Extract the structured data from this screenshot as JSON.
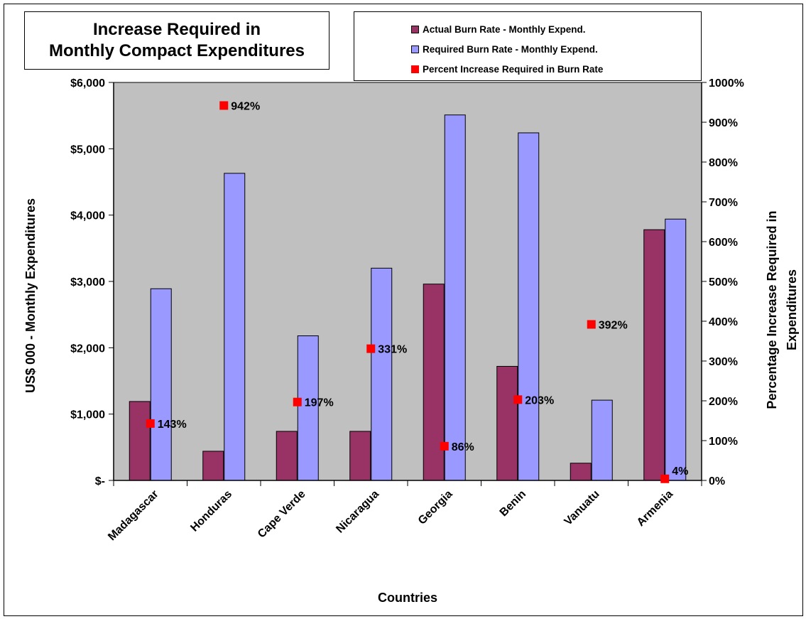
{
  "title_lines": [
    "Increase Required in",
    "Monthly Compact Expenditures"
  ],
  "chart_data": {
    "type": "bar",
    "title": "Increase Required in Monthly Compact Expenditures",
    "xlabel": "Countries",
    "ylabel": "US$ 000 - Monthly Expenditures",
    "y2label_lines": [
      "Percentage Increase Required in",
      "Expenditures"
    ],
    "categories": [
      "Madagascar",
      "Honduras",
      "Cape Verde",
      "Nicaragua",
      "Georgia",
      "Benin",
      "Vanuatu",
      "Armenia"
    ],
    "ylim": [
      0,
      6000
    ],
    "y2lim": [
      0,
      1000
    ],
    "yticks": [
      0,
      1000,
      2000,
      3000,
      4000,
      5000,
      6000
    ],
    "ytick_labels": [
      "$-",
      "$1,000",
      "$2,000",
      "$3,000",
      "$4,000",
      "$5,000",
      "$6,000"
    ],
    "y2ticks": [
      0,
      100,
      200,
      300,
      400,
      500,
      600,
      700,
      800,
      900,
      1000
    ],
    "y2tick_labels": [
      "0%",
      "100%",
      "200%",
      "300%",
      "400%",
      "500%",
      "600%",
      "700%",
      "800%",
      "900%",
      "1000%"
    ],
    "grid": false,
    "plot_background": "#C0C0C0",
    "legend_position": "top-right",
    "series": [
      {
        "name": "Actual Burn Rate  - Monthly Expend.",
        "axis": "left",
        "kind": "bar",
        "color": "#993366",
        "values": [
          1190,
          440,
          740,
          740,
          2960,
          1720,
          260,
          3780
        ]
      },
      {
        "name": "Required Burn Rate  - Monthly Expend.",
        "axis": "left",
        "kind": "bar",
        "color": "#9999FF",
        "values": [
          2890,
          4630,
          2180,
          3200,
          5510,
          5240,
          1210,
          3940
        ]
      },
      {
        "name": "Percent Increase Required in Burn Rate",
        "axis": "right",
        "kind": "marker",
        "color": "#FF0000",
        "values": [
          143,
          942,
          197,
          331,
          86,
          203,
          392,
          4
        ],
        "labels": [
          "143%",
          "942%",
          "197%",
          "331%",
          "86%",
          "203%",
          "392%",
          "4%"
        ]
      }
    ]
  }
}
